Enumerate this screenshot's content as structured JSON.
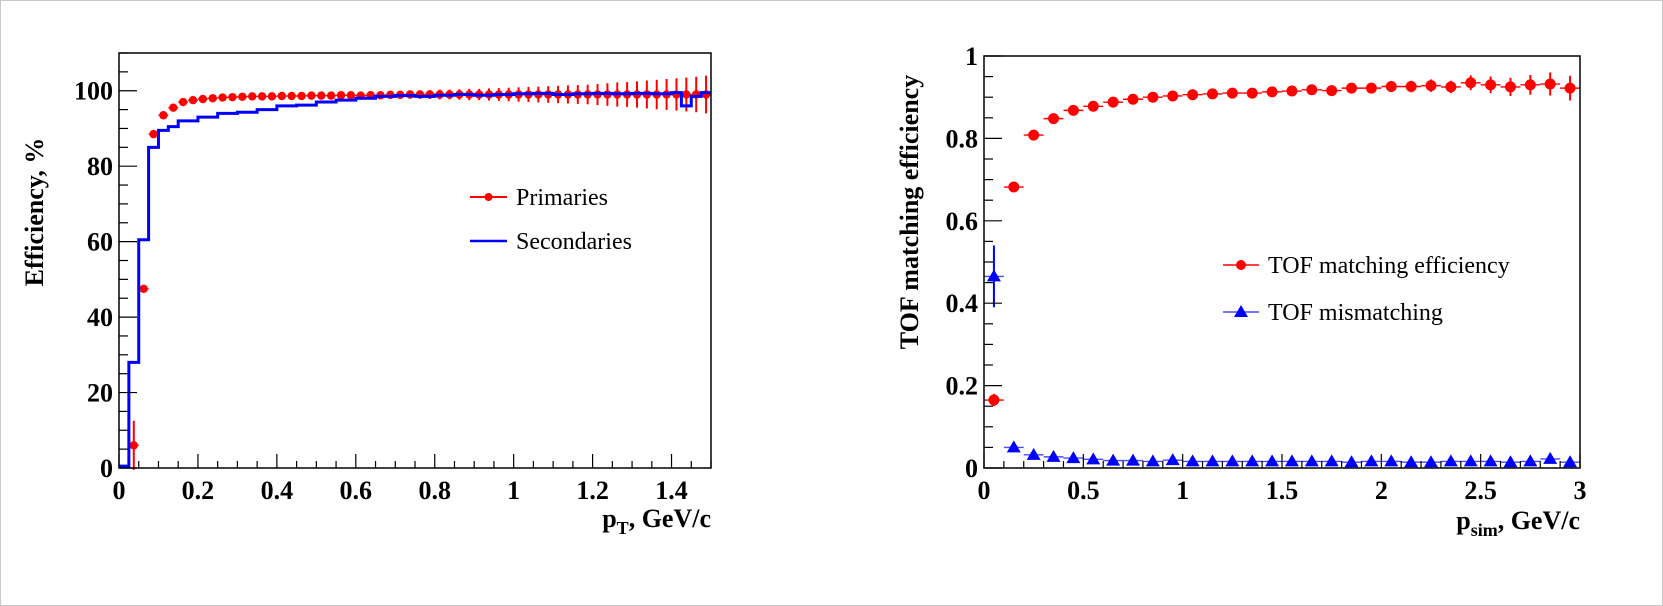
{
  "chart_data": [
    {
      "type": "scatter",
      "xlabel": "p_T, GeV/c",
      "xlabel_main": "p",
      "xlabel_sub": "T",
      "xlabel_rest": ", GeV/c",
      "ylabel": "Efficiency, %",
      "xlim": [
        0,
        1.5
      ],
      "ylim": [
        0,
        110
      ],
      "xticks": [
        0,
        0.2,
        0.4,
        0.6,
        0.8,
        1,
        1.2,
        1.4
      ],
      "xtick_labels": [
        "0",
        "0.2",
        "0.4",
        "0.6",
        "0.8",
        "1",
        "1.2",
        "1.4"
      ],
      "yticks": [
        0,
        20,
        40,
        60,
        80,
        100
      ],
      "ytick_labels": [
        "0",
        "20",
        "40",
        "60",
        "80",
        "100"
      ],
      "legend_position": "center-right",
      "legend": [
        "Primaries",
        "Secondaries"
      ],
      "series": [
        {
          "name": "Primaries",
          "style": "markers-with-errors",
          "color": "#ff0000",
          "bin_width": 0.025,
          "x": [
            0.0375,
            0.0625,
            0.0875,
            0.1125,
            0.1375,
            0.1625,
            0.1875,
            0.2125,
            0.2375,
            0.2625,
            0.2875,
            0.3125,
            0.3375,
            0.3625,
            0.3875,
            0.4125,
            0.4375,
            0.4625,
            0.4875,
            0.5125,
            0.5375,
            0.5625,
            0.5875,
            0.6125,
            0.6375,
            0.6625,
            0.6875,
            0.7125,
            0.7375,
            0.7625,
            0.7875,
            0.8125,
            0.8375,
            0.8625,
            0.8875,
            0.9125,
            0.9375,
            0.9625,
            0.9875,
            1.0125,
            1.0375,
            1.0625,
            1.0875,
            1.1125,
            1.1375,
            1.1625,
            1.1875,
            1.2125,
            1.2375,
            1.2625,
            1.2875,
            1.3125,
            1.3375,
            1.3625,
            1.3875,
            1.4125,
            1.4375,
            1.4625,
            1.4875
          ],
          "values": [
            6,
            47.5,
            88.5,
            93.5,
            95.5,
            97,
            97.5,
            97.8,
            98,
            98.2,
            98.3,
            98.4,
            98.5,
            98.5,
            98.5,
            98.6,
            98.6,
            98.6,
            98.7,
            98.7,
            98.7,
            98.8,
            98.8,
            98.7,
            98.8,
            98.8,
            98.9,
            98.9,
            99,
            99,
            99,
            99,
            99,
            99,
            99,
            99,
            99,
            99,
            99,
            99,
            99,
            99,
            99,
            99,
            99,
            99,
            99,
            99,
            99,
            99,
            99,
            99,
            99,
            99,
            99,
            99,
            99,
            99,
            99
          ],
          "errors": [
            6.5,
            1,
            0.6,
            0.5,
            0.4,
            0.3,
            0.3,
            0.3,
            0.3,
            0.3,
            0.3,
            0.3,
            0.4,
            0.4,
            0.4,
            0.5,
            0.5,
            0.5,
            0.6,
            0.6,
            0.7,
            0.7,
            0.8,
            0.8,
            0.9,
            0.9,
            1,
            1,
            1.1,
            1.1,
            1.2,
            1.3,
            1.3,
            1.4,
            1.5,
            1.5,
            1.6,
            1.7,
            1.8,
            1.9,
            2,
            2.1,
            2.2,
            2.3,
            2.4,
            2.5,
            2.6,
            2.8,
            3,
            3.2,
            3.3,
            3.5,
            3.7,
            3.9,
            4.1,
            4.3,
            4.5,
            4.7,
            5
          ]
        },
        {
          "name": "Secondaries",
          "style": "step-histogram",
          "color": "#0000ff",
          "bin_edges": [
            0,
            0.025,
            0.05,
            0.075,
            0.1,
            0.125,
            0.15,
            0.2,
            0.25,
            0.3,
            0.35,
            0.4,
            0.45,
            0.5,
            0.55,
            0.6,
            0.65,
            0.7,
            0.75,
            0.8,
            0.85,
            0.9,
            0.95,
            1.0,
            1.05,
            1.1,
            1.15,
            1.2,
            1.25,
            1.3,
            1.35,
            1.4,
            1.425,
            1.45,
            1.475,
            1.5
          ],
          "values": [
            0.5,
            28,
            60.5,
            85,
            89.5,
            90.5,
            92,
            93,
            94,
            94.3,
            95,
            96,
            96.2,
            97,
            97.5,
            98,
            98.5,
            98.7,
            98.5,
            98.8,
            99,
            98.8,
            99,
            99.2,
            99.3,
            99,
            99.2,
            99.3,
            99.2,
            99.3,
            99.2,
            99.5,
            96,
            98.5,
            99.5
          ]
        }
      ]
    },
    {
      "type": "scatter",
      "xlabel": "p_sim, GeV/c",
      "xlabel_main": "p",
      "xlabel_sub": "sim",
      "xlabel_rest": ", GeV/c",
      "ylabel": "TOF matching efficiency",
      "xlim": [
        0,
        3
      ],
      "ylim": [
        0,
        1
      ],
      "xticks": [
        0,
        0.5,
        1,
        1.5,
        2,
        2.5,
        3
      ],
      "xtick_labels": [
        "0",
        "0.5",
        "1",
        "1.5",
        "2",
        "2.5",
        "3"
      ],
      "yticks": [
        0,
        0.2,
        0.4,
        0.6,
        0.8,
        1
      ],
      "ytick_labels": [
        "0",
        "0.2",
        "0.4",
        "0.6",
        "0.8",
        "1"
      ],
      "legend_position": "center-right",
      "legend": [
        "TOF matching efficiency",
        "TOF mismatching"
      ],
      "series": [
        {
          "name": "TOF matching efficiency",
          "marker": "circle",
          "color": "#ff0000",
          "bin_width": 0.1,
          "x": [
            0.05,
            0.15,
            0.25,
            0.35,
            0.45,
            0.55,
            0.65,
            0.75,
            0.85,
            0.95,
            1.05,
            1.15,
            1.25,
            1.35,
            1.45,
            1.55,
            1.65,
            1.75,
            1.85,
            1.95,
            2.05,
            2.15,
            2.25,
            2.35,
            2.45,
            2.55,
            2.65,
            2.75,
            2.85,
            2.95
          ],
          "values": [
            0.165,
            0.682,
            0.808,
            0.848,
            0.868,
            0.878,
            0.888,
            0.895,
            0.9,
            0.903,
            0.906,
            0.908,
            0.91,
            0.91,
            0.913,
            0.915,
            0.918,
            0.916,
            0.922,
            0.922,
            0.926,
            0.926,
            0.928,
            0.925,
            0.935,
            0.93,
            0.925,
            0.93,
            0.932,
            0.922
          ],
          "errors": [
            0.015,
            0.008,
            0.006,
            0.006,
            0.006,
            0.006,
            0.006,
            0.006,
            0.006,
            0.006,
            0.007,
            0.007,
            0.008,
            0.008,
            0.009,
            0.009,
            0.01,
            0.011,
            0.012,
            0.012,
            0.013,
            0.014,
            0.015,
            0.015,
            0.018,
            0.02,
            0.022,
            0.024,
            0.028,
            0.03
          ]
        },
        {
          "name": "TOF mismatching",
          "marker": "triangle",
          "color": "#0000ff",
          "bin_width": 0.1,
          "x": [
            0.05,
            0.15,
            0.25,
            0.35,
            0.45,
            0.55,
            0.65,
            0.75,
            0.85,
            0.95,
            1.05,
            1.15,
            1.25,
            1.35,
            1.45,
            1.55,
            1.65,
            1.75,
            1.85,
            1.95,
            2.05,
            2.15,
            2.25,
            2.35,
            2.45,
            2.55,
            2.65,
            2.75,
            2.85,
            2.95
          ],
          "values": [
            0.465,
            0.05,
            0.032,
            0.027,
            0.024,
            0.021,
            0.018,
            0.018,
            0.016,
            0.019,
            0.016,
            0.016,
            0.016,
            0.016,
            0.016,
            0.016,
            0.016,
            0.016,
            0.014,
            0.016,
            0.016,
            0.014,
            0.014,
            0.016,
            0.016,
            0.016,
            0.014,
            0.016,
            0.022,
            0.014
          ],
          "errors": [
            0.075,
            0.008,
            0.005,
            0.004,
            0.004,
            0.003,
            0.003,
            0.003,
            0.003,
            0.003,
            0.003,
            0.003,
            0.003,
            0.003,
            0.003,
            0.003,
            0.003,
            0.003,
            0.003,
            0.003,
            0.003,
            0.003,
            0.003,
            0.003,
            0.003,
            0.003,
            0.003,
            0.003,
            0.004,
            0.004
          ]
        }
      ]
    }
  ]
}
